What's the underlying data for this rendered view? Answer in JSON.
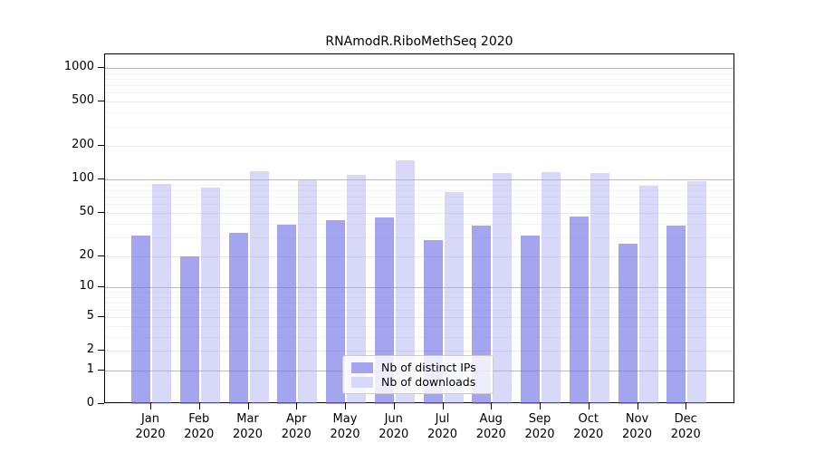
{
  "chart_data": {
    "type": "bar",
    "title": "RNAmodR.RiboMethSeq 2020",
    "categories": [
      "Jan",
      "Feb",
      "Mar",
      "Apr",
      "May",
      "Jun",
      "Jul",
      "Aug",
      "Sep",
      "Oct",
      "Nov",
      "Dec"
    ],
    "year_label": "2020",
    "series": [
      {
        "name": "Nb of distinct IPs",
        "values": [
          31,
          20,
          33,
          39,
          43,
          45,
          28,
          38,
          31,
          46,
          26,
          38
        ],
        "bar_color": "rgba(117,117,230,0.65)",
        "legend_color": "#a5a5ef"
      },
      {
        "name": "Nb of downloads",
        "values": [
          92,
          85,
          119,
          99,
          110,
          150,
          77,
          114,
          117,
          115,
          88,
          97
        ],
        "bar_color": "rgba(168,168,239,0.45)",
        "legend_color": "#d8d8f8"
      }
    ],
    "y_axis": {
      "scale": "log10(value+1)",
      "tick_labels": [
        "1000",
        "500",
        "200",
        "100",
        "50",
        "20",
        "10",
        "5",
        "2",
        "1",
        "0"
      ],
      "tick_values": [
        1000,
        500,
        200,
        100,
        50,
        20,
        10,
        5,
        2,
        1,
        0
      ],
      "range_top_approx": 1320
    },
    "legend_position": "lower center",
    "grid": true,
    "colors": {
      "gridline_power": "#bcbcbc",
      "gridline_labeled": "#e8e8e8",
      "gridline_minor": "#f3f3f3",
      "spine": "#000000"
    }
  }
}
